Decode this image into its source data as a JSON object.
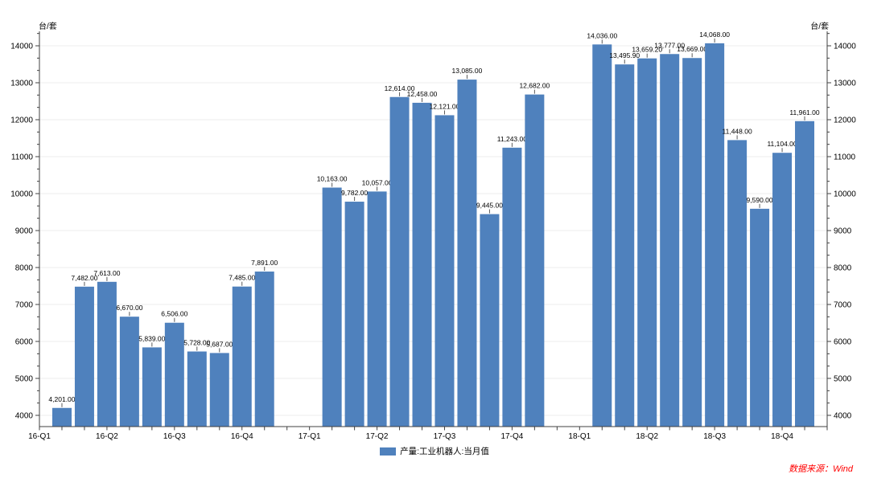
{
  "chart_data": {
    "type": "bar",
    "title": "",
    "grid_color": "#ececec",
    "axis_color": "#404040",
    "background_color": "#ffffff",
    "y_axis": {
      "unit": "台/套",
      "shown_on_both_sides": true,
      "tick_labels": [
        "4000",
        "5000",
        "6000",
        "7000",
        "8000",
        "9000",
        "10000",
        "11000",
        "12000",
        "13000",
        "14000"
      ],
      "tick_values": [
        4000,
        5000,
        6000,
        7000,
        8000,
        9000,
        10000,
        11000,
        12000,
        13000,
        14000
      ],
      "minor_divisions_per_major": 3,
      "ylim": [
        3696,
        14390
      ]
    },
    "x_axis": {
      "quarter_labels": [
        "16-Q1",
        "16-Q2",
        "16-Q3",
        "16-Q4",
        "17-Q1",
        "17-Q2",
        "17-Q3",
        "17-Q4",
        "18-Q1",
        "18-Q2",
        "18-Q3",
        "18-Q4"
      ],
      "quarter_label_slots": [
        0,
        3,
        6,
        9,
        12,
        15,
        18,
        21,
        24,
        27,
        30,
        33
      ],
      "total_slots": 36
    },
    "series": [
      {
        "name": "产量:工业机器人:当月值",
        "color": "#4f81bd",
        "groups": [
          {
            "year": "2016",
            "start_slot": 1,
            "points": [
              {
                "value": 4201,
                "label": "4,201.00"
              },
              {
                "value": 7482,
                "label": "7,482.00"
              },
              {
                "value": 7613,
                "label": "7,613.00"
              },
              {
                "value": 6670,
                "label": "6,670.00"
              },
              {
                "value": 5839,
                "label": "5,839.00"
              },
              {
                "value": 6506,
                "label": "6,506.00"
              },
              {
                "value": 5728,
                "label": "5,728.00"
              },
              {
                "value": 5687,
                "label": "5,687.00"
              },
              {
                "value": 7485,
                "label": "7,485.00"
              },
              {
                "value": 7891,
                "label": "7,891.00"
              }
            ]
          },
          {
            "year": "2017",
            "start_slot": 13,
            "points": [
              {
                "value": 10163,
                "label": "10,163.00"
              },
              {
                "value": 9782,
                "label": "9,782.00"
              },
              {
                "value": 10057,
                "label": "10,057.00"
              },
              {
                "value": 12614,
                "label": "12,614.00"
              },
              {
                "value": 12458,
                "label": "12,458.00"
              },
              {
                "value": 12121,
                "label": "12,121.00"
              },
              {
                "value": 13085,
                "label": "13,085.00"
              },
              {
                "value": 9445,
                "label": "9,445.00"
              },
              {
                "value": 11243,
                "label": "11,243.00"
              },
              {
                "value": 12682,
                "label": "12,682.00"
              }
            ]
          },
          {
            "year": "2018",
            "start_slot": 25,
            "points": [
              {
                "value": 14036,
                "label": "14,036.00"
              },
              {
                "value": 13495.9,
                "label": "13,495.90"
              },
              {
                "value": 13659.2,
                "label": "13,659.20"
              },
              {
                "value": 13777,
                "label": "13,777.00"
              },
              {
                "value": 13669,
                "label": "13,669.00"
              },
              {
                "value": 14068,
                "label": "14,068.00"
              },
              {
                "value": 11448,
                "label": "11,448.00"
              },
              {
                "value": 9590,
                "label": "9,590.00"
              },
              {
                "value": 11104,
                "label": "11,104.00"
              },
              {
                "value": 11961,
                "label": "11,961.00"
              }
            ]
          }
        ]
      }
    ],
    "legend": {
      "label": "产量:工业机器人:当月值",
      "swatch_color": "#4f81bd",
      "position": "bottom-center"
    },
    "source_note": {
      "text": "数据来源：Wind",
      "color": "#ff0000"
    }
  }
}
